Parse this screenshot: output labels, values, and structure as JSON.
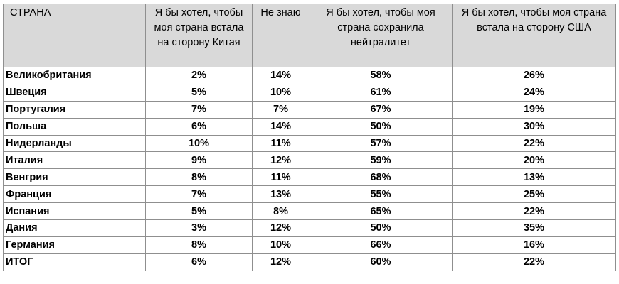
{
  "table": {
    "headers": [
      "СТРАНА",
      "Я бы хотел, чтобы моя страна встала на сторону Китая",
      "Не знаю",
      "Я бы хотел, чтобы моя страна сохранила нейтралитет",
      "Я бы хотел, чтобы моя страна встала на сторону США"
    ],
    "rows": [
      [
        "Великобритания",
        "2%",
        "14%",
        "58%",
        "26%"
      ],
      [
        "Швеция",
        "5%",
        "10%",
        "61%",
        "24%"
      ],
      [
        "Португалия",
        "7%",
        "7%",
        "67%",
        "19%"
      ],
      [
        "Польша",
        "6%",
        "14%",
        "50%",
        "30%"
      ],
      [
        "Нидерланды",
        "10%",
        "11%",
        "57%",
        "22%"
      ],
      [
        "Италия",
        "9%",
        "12%",
        "59%",
        "20%"
      ],
      [
        "Венгрия",
        "8%",
        "11%",
        "68%",
        "13%"
      ],
      [
        "Франция",
        "7%",
        "13%",
        "55%",
        "25%"
      ],
      [
        "Испания",
        "5%",
        "8%",
        "65%",
        "22%"
      ],
      [
        "Дания",
        "3%",
        "12%",
        "50%",
        "35%"
      ],
      [
        "Германия",
        "8%",
        "10%",
        "66%",
        "16%"
      ],
      [
        "ИТОГ",
        "6%",
        "12%",
        "60%",
        "22%"
      ]
    ]
  },
  "colors": {
    "header_background": "#d9d9d9",
    "border": "#8f8f8f",
    "text": "#000000"
  }
}
